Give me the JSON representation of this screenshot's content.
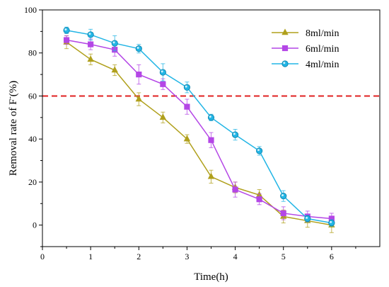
{
  "chart_data": {
    "type": "line",
    "title": "",
    "xlabel": "Time(h)",
    "ylabel": "Removal rate of F",
    "ylabel_sup": "-",
    "ylabel_unit": "(%)",
    "xlim": [
      0,
      7
    ],
    "ylim": [
      -10,
      100
    ],
    "xticks": [
      0,
      1,
      2,
      3,
      4,
      5,
      6
    ],
    "yticks": [
      0,
      20,
      40,
      60,
      80,
      100
    ],
    "grid": false,
    "legend_position": "top-right",
    "threshold": {
      "y": 60,
      "color": "#e02020",
      "style": "dashed"
    },
    "series": [
      {
        "name": "8ml/min",
        "marker": "triangle",
        "color": "#b0a01c",
        "x": [
          0.5,
          1,
          1.5,
          2,
          2.5,
          3,
          3.5,
          4,
          4.5,
          5,
          5.5,
          6
        ],
        "y": [
          85,
          77,
          72,
          58.5,
          50,
          40,
          22.5,
          17.5,
          14,
          4,
          2,
          0
        ],
        "err": [
          3,
          2.5,
          2.5,
          3,
          2.5,
          2,
          3,
          2.5,
          2.5,
          3,
          3,
          3.5
        ]
      },
      {
        "name": "6ml/min",
        "marker": "square",
        "color": "#b446e6",
        "x": [
          0.5,
          1,
          1.5,
          2,
          2.5,
          3,
          3.5,
          4,
          4.5,
          5,
          5.5,
          6
        ],
        "y": [
          86,
          84,
          81.5,
          70,
          65.5,
          55,
          39.5,
          16.5,
          12,
          5.5,
          4,
          3
        ],
        "err": [
          2,
          2.5,
          3,
          4.5,
          2.5,
          3.5,
          3.5,
          3.5,
          2.5,
          3,
          2.5,
          2.5
        ]
      },
      {
        "name": "4ml/min",
        "marker": "circle",
        "color": "#22b5e5",
        "x": [
          0.5,
          1,
          1.5,
          2,
          2.5,
          3,
          3.5,
          4,
          4.5,
          5,
          5.5,
          6
        ],
        "y": [
          90.5,
          88.5,
          84.5,
          82,
          71,
          64,
          50,
          42,
          34.5,
          13.5,
          3,
          1
        ],
        "err": [
          1.5,
          2.5,
          3.5,
          2,
          4,
          2.5,
          1.5,
          2.5,
          2,
          2.5,
          1.5,
          1.5
        ]
      }
    ]
  }
}
